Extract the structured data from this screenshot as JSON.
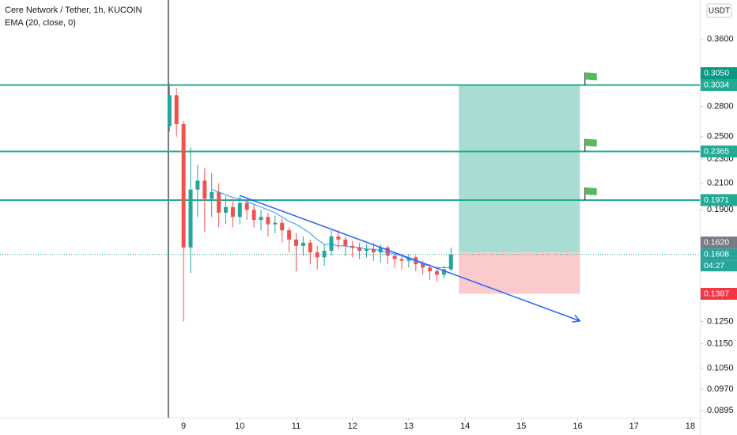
{
  "chart_data": {
    "type": "candlestick",
    "title": "Cere Network / Tether, 1h, KUCOIN",
    "indicator": "EMA (20, close, 0)",
    "currency": "USDT",
    "log_scale": true,
    "xlim": [
      5.74,
      18.17
    ],
    "xticks": [
      9,
      10,
      11,
      12,
      13,
      14,
      15,
      16,
      17,
      18
    ],
    "ylim": [
      0.0872,
      0.4173
    ],
    "yticks": [
      {
        "value": 0.0895,
        "label": "0.0895"
      },
      {
        "value": 0.097,
        "label": "0.0970"
      },
      {
        "value": 0.105,
        "label": "0.1050"
      },
      {
        "value": 0.115,
        "label": "0.1150"
      },
      {
        "value": 0.125,
        "label": "0.1250"
      },
      {
        "value": 0.19,
        "label": "0.1900"
      },
      {
        "value": 0.21,
        "label": "0.2100"
      },
      {
        "value": 0.23,
        "label": "0.2300"
      },
      {
        "value": 0.25,
        "label": "0.2500"
      },
      {
        "value": 0.28,
        "label": "0.2800"
      },
      {
        "value": 0.36,
        "label": "0.3600"
      }
    ],
    "up_color": "#26a69a",
    "down_color": "#ef5350",
    "x": [
      8.75,
      8.875,
      9.0,
      9.125,
      9.25,
      9.375,
      9.5,
      9.625,
      9.75,
      9.875,
      10.0,
      10.125,
      10.25,
      10.375,
      10.5,
      10.625,
      10.75,
      10.875,
      11.0,
      11.125,
      11.25,
      11.375,
      11.5,
      11.625,
      11.75,
      11.875,
      12.0,
      12.125,
      12.25,
      12.375,
      12.5,
      12.625,
      12.75,
      12.875,
      13.0,
      13.125,
      13.25,
      13.375,
      13.5,
      13.625,
      13.75
    ],
    "open": [
      0.26,
      0.292,
      0.262,
      0.165,
      0.205,
      0.212,
      0.198,
      0.203,
      0.188,
      0.192,
      0.185,
      0.195,
      0.19,
      0.183,
      0.185,
      0.18,
      0.181,
      0.176,
      0.17,
      0.166,
      0.168,
      0.162,
      0.159,
      0.163,
      0.172,
      0.17,
      0.166,
      0.165,
      0.163,
      0.164,
      0.162,
      0.165,
      0.16,
      0.158,
      0.157,
      0.159,
      0.155,
      0.153,
      0.151,
      0.149,
      0.152
    ],
    "high": [
      0.305,
      0.3,
      0.265,
      0.24,
      0.225,
      0.222,
      0.218,
      0.21,
      0.2,
      0.198,
      0.2,
      0.198,
      0.194,
      0.19,
      0.188,
      0.186,
      0.184,
      0.178,
      0.174,
      0.172,
      0.17,
      0.166,
      0.167,
      0.176,
      0.176,
      0.172,
      0.169,
      0.168,
      0.167,
      0.168,
      0.167,
      0.166,
      0.162,
      0.161,
      0.161,
      0.16,
      0.157,
      0.155,
      0.153,
      0.154,
      0.165
    ],
    "low": [
      0.255,
      0.25,
      0.125,
      0.15,
      0.185,
      0.175,
      0.185,
      0.178,
      0.18,
      0.178,
      0.18,
      0.183,
      0.178,
      0.176,
      0.172,
      0.174,
      0.168,
      0.162,
      0.151,
      0.16,
      0.155,
      0.152,
      0.154,
      0.16,
      0.164,
      0.16,
      0.159,
      0.158,
      0.159,
      0.157,
      0.156,
      0.155,
      0.153,
      0.152,
      0.153,
      0.151,
      0.149,
      0.146,
      0.145,
      0.147,
      0.151
    ],
    "close": [
      0.292,
      0.262,
      0.165,
      0.205,
      0.212,
      0.198,
      0.203,
      0.188,
      0.192,
      0.185,
      0.195,
      0.19,
      0.183,
      0.185,
      0.18,
      0.181,
      0.176,
      0.17,
      0.166,
      0.168,
      0.162,
      0.159,
      0.163,
      0.172,
      0.17,
      0.166,
      0.165,
      0.163,
      0.164,
      0.162,
      0.165,
      0.16,
      0.158,
      0.157,
      0.159,
      0.155,
      0.153,
      0.151,
      0.149,
      0.152,
      0.1608
    ],
    "ema": {
      "color": "#2196f3",
      "values": [
        null,
        null,
        null,
        null,
        null,
        null,
        0.205,
        0.203,
        0.201,
        0.199,
        0.198,
        0.196,
        0.194,
        0.192,
        0.19,
        0.188,
        0.185,
        0.182,
        0.18,
        0.177,
        0.174,
        0.17,
        0.167,
        0.167,
        0.166,
        0.166,
        0.165,
        0.165,
        0.164,
        0.164,
        0.163,
        0.162,
        0.161,
        0.16,
        0.158,
        0.157,
        0.155,
        0.154,
        0.153,
        0.153,
        0.153
      ]
    },
    "session_break_x": 8.73,
    "price_labels": [
      {
        "value": 0.3034,
        "label": "0.3034",
        "color": "#22ab94",
        "line": true
      },
      {
        "value": 0.305,
        "label": "0.3050",
        "color": "#089981"
      },
      {
        "value": 0.2365,
        "label": "0.2365",
        "color": "#22ab94",
        "line": true
      },
      {
        "value": 0.1971,
        "label": "0.1971",
        "color": "#22ab94",
        "line": true
      },
      {
        "value": 0.1608,
        "label": "0.1608",
        "color": "#26a69a",
        "dotted": true,
        "countdown": "04:27"
      },
      {
        "value": 0.162,
        "label": "0.1620",
        "color": "#787b86"
      },
      {
        "value": 0.1387,
        "label": "0.1387",
        "color": "#f23645"
      }
    ],
    "position": {
      "entry": 0.162,
      "target": 0.3034,
      "stop": 0.1387,
      "x_start": 13.89,
      "x_end": 16.04,
      "profit_color": "#9fd9cf",
      "loss_color": "#fbc4c4"
    },
    "flags_x": 16.13,
    "trendline": {
      "color": "#2962ff",
      "x": [
        10.0,
        16.04
      ],
      "y": [
        0.2005,
        0.1253
      ]
    }
  }
}
